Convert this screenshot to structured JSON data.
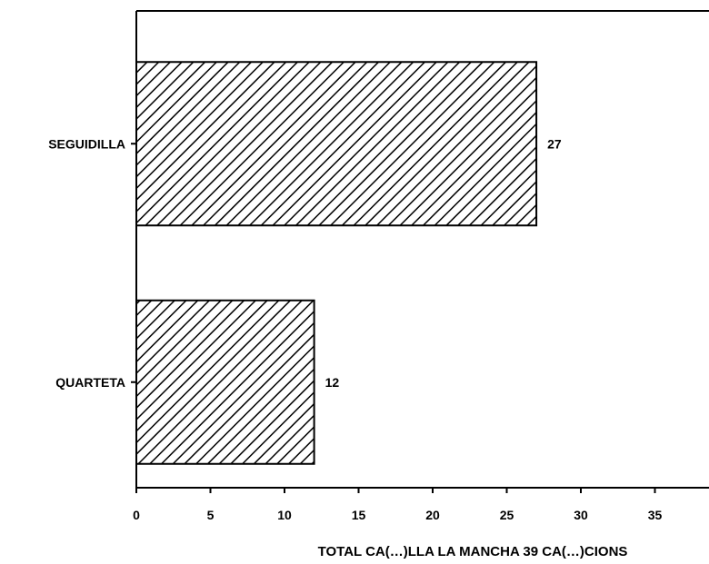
{
  "chart_data": {
    "type": "bar",
    "orientation": "horizontal",
    "categories": [
      "SEGUIDILLA",
      "QUARTETA"
    ],
    "values": [
      27,
      12
    ],
    "data_labels": [
      "27",
      "12"
    ],
    "xticks": [
      "0",
      "5",
      "10",
      "15",
      "20",
      "25",
      "30",
      "35"
    ],
    "xlim": [
      0,
      37
    ],
    "xlabel": "TOTAL CA(…)LLA LA MANCHA 39 CA(…)CIONS",
    "title": "",
    "grid": false,
    "bar_fill": "diagonal-hatch",
    "colors": {
      "ink": "#000000",
      "background": "#ffffff"
    }
  }
}
